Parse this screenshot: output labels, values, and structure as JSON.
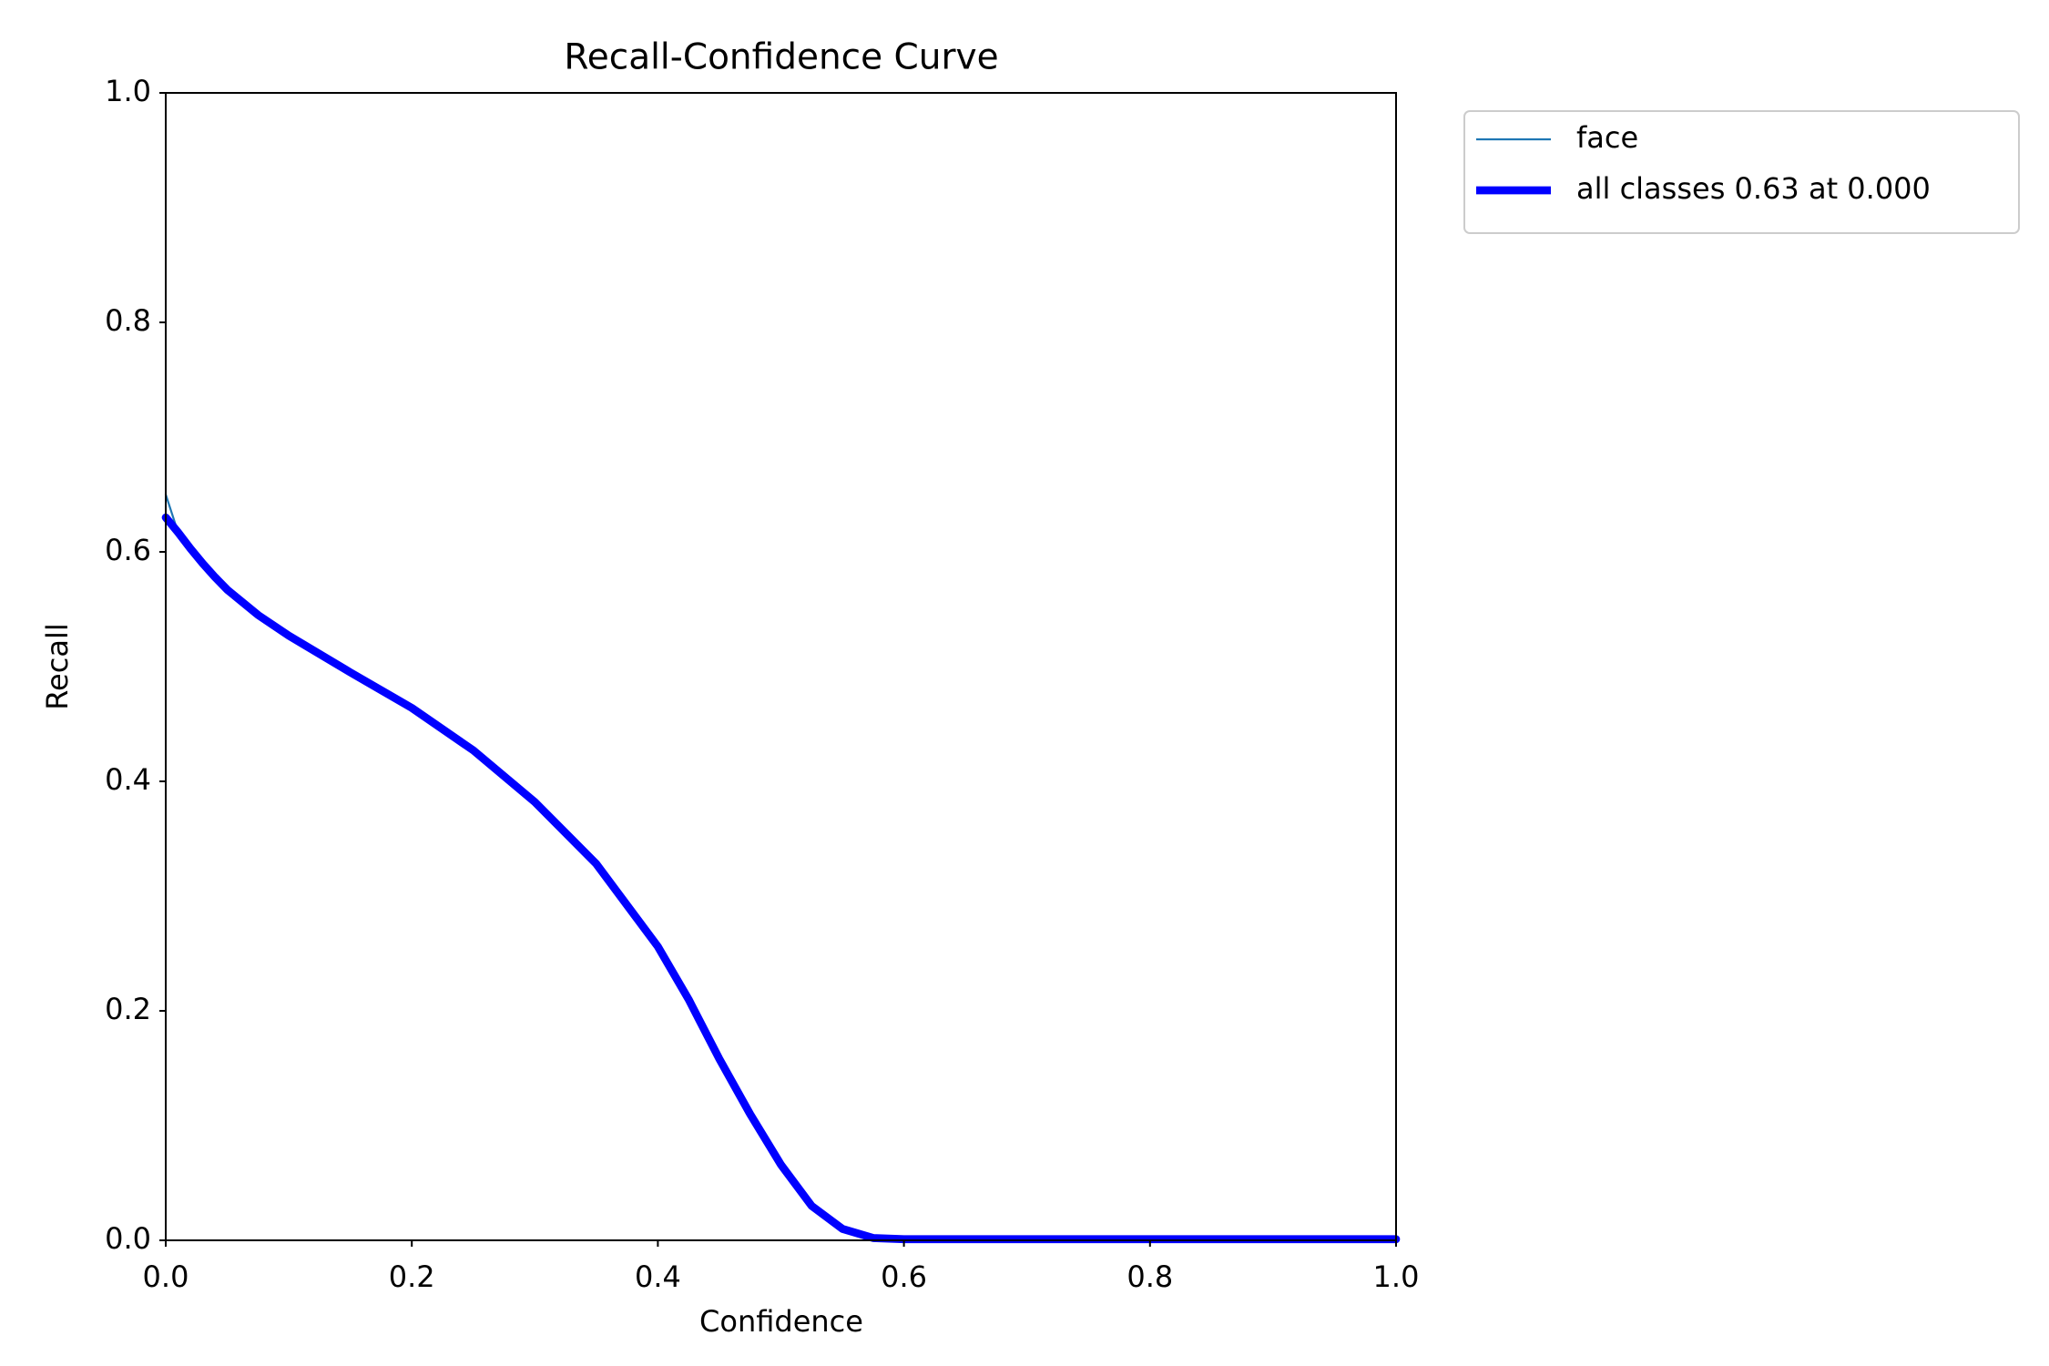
{
  "chart_data": {
    "type": "line",
    "title": "Recall-Confidence Curve",
    "x_label": "Confidence",
    "y_label": "Recall",
    "x": [
      0,
      0.01,
      0.02,
      0.03,
      0.04,
      0.05,
      0.075,
      0.1,
      0.15,
      0.2,
      0.25,
      0.3,
      0.35,
      0.4,
      0.425,
      0.45,
      0.475,
      0.5,
      0.525,
      0.55,
      0.575,
      0.6,
      0.7,
      0.8,
      0.9,
      1.0
    ],
    "series": [
      {
        "name": "face",
        "color": "#1f77b4",
        "line_width": 2.2,
        "values": [
          0.65,
          0.617,
          0.603,
          0.59,
          0.578,
          0.567,
          0.545,
          0.527,
          0.495,
          0.464,
          0.427,
          0.382,
          0.328,
          0.256,
          0.21,
          0.158,
          0.11,
          0.066,
          0.03,
          0.01,
          0.002,
          0.001,
          0.001,
          0.001,
          0.001,
          0.001
        ]
      },
      {
        "name": "all classes 0.63 at 0.000",
        "color": "#0000ff",
        "line_width": 8.7,
        "values": [
          0.63,
          0.617,
          0.603,
          0.59,
          0.578,
          0.567,
          0.545,
          0.527,
          0.495,
          0.464,
          0.427,
          0.382,
          0.328,
          0.256,
          0.21,
          0.158,
          0.11,
          0.066,
          0.03,
          0.01,
          0.002,
          0.001,
          0.001,
          0.001,
          0.001,
          0.001
        ]
      }
    ],
    "xlim": [
      0,
      1
    ],
    "ylim": [
      0,
      1
    ],
    "xticks": [
      {
        "value": 0,
        "label": "0.0"
      },
      0.2,
      0.4,
      0.6,
      0.8,
      {
        "value": 1,
        "label": "1.0"
      }
    ],
    "yticks": [
      {
        "value": 0,
        "label": "0.0"
      },
      0.2,
      0.4,
      0.6,
      0.8,
      {
        "value": 1,
        "label": "1.0"
      }
    ],
    "grid": false,
    "legend": "outside-upper-right"
  }
}
